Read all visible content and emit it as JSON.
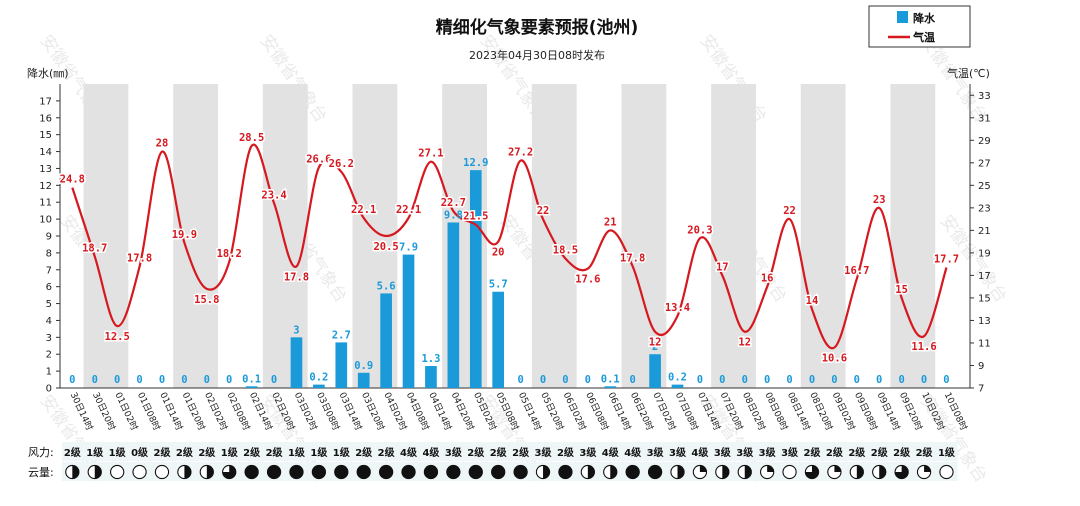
{
  "title": "精细化气象要素预报(池州)",
  "subtitle": "2023年04月30日08时发布",
  "legend": {
    "rain_label": "降水",
    "temp_label": "气温"
  },
  "colors": {
    "rain": "#1a9ad9",
    "temp": "#d6181f",
    "band": "#e2e2e2"
  },
  "watermark": "安徽省气象台",
  "rows": {
    "wind_label": "风力:",
    "cloud_label": "云量:"
  },
  "chart_data": {
    "type": "bar+line",
    "left_axis": {
      "label": "降水(㎜)",
      "min": 0,
      "max": 18,
      "ticks": [
        0,
        1,
        2,
        3,
        4,
        5,
        6,
        7,
        8,
        9,
        10,
        11,
        12,
        13,
        14,
        15,
        16,
        17
      ]
    },
    "right_axis": {
      "label": "气温(℃)",
      "min": 7,
      "max": 34,
      "ticks": [
        7,
        9,
        11,
        13,
        15,
        17,
        19,
        21,
        23,
        25,
        27,
        29,
        31,
        33
      ]
    },
    "categories": [
      "30日14时",
      "30日20时",
      "01日02时",
      "01日08时",
      "01日14时",
      "01日20时",
      "02日02时",
      "02日08时",
      "02日14时",
      "02日20时",
      "03日02时",
      "03日08时",
      "03日14时",
      "03日20时",
      "04日02时",
      "04日08时",
      "04日14时",
      "04日20时",
      "05日02时",
      "05日08时",
      "05日14时",
      "05日20时",
      "06日02时",
      "06日08时",
      "06日14时",
      "06日20时",
      "07日02时",
      "07日08时",
      "07日14时",
      "07日20时",
      "08日02时",
      "08日08时",
      "08日14时",
      "08日20时",
      "09日02时",
      "09日08时",
      "09日14时",
      "09日20时",
      "10日02时",
      "10日08时"
    ],
    "rain_values": [
      0,
      0,
      0,
      0,
      0,
      0,
      0,
      0,
      0.1,
      0,
      3,
      0.2,
      2.7,
      0.9,
      5.6,
      7.9,
      1.3,
      9.8,
      12.9,
      5.7,
      0,
      0,
      0,
      0,
      0.1,
      0,
      2,
      0.2,
      0,
      0,
      0,
      0,
      0,
      0,
      0,
      0,
      0,
      0,
      0,
      0
    ],
    "rain_labels": [
      "0",
      "0",
      "0",
      "0",
      "0",
      "0",
      "0",
      "0",
      "0.1",
      "0",
      "3",
      "0.2",
      "2.7",
      "0.9",
      "5.6",
      "7.9",
      "1.3",
      "9.8",
      "12.9",
      "5.7",
      "0",
      "0",
      "0",
      "0",
      "0.1",
      "0",
      "2",
      "0.2",
      "0",
      "0",
      "0",
      "0",
      "0",
      "0",
      "0",
      "0",
      "0",
      "0",
      "0",
      "0"
    ],
    "temp_values": [
      24.8,
      18.7,
      12.5,
      17.8,
      28,
      19.9,
      15.8,
      18.2,
      28.5,
      23.4,
      17.8,
      26.6,
      26.2,
      22.1,
      20.5,
      22.1,
      27.1,
      22.7,
      21.5,
      20,
      27.2,
      22,
      18.5,
      17.6,
      21,
      17.8,
      12,
      13.4,
      20.3,
      17,
      12,
      16,
      22,
      14,
      10.6,
      16.7,
      23,
      15,
      11.6,
      17.7
    ],
    "temp_labels": [
      "24.8",
      "18.7",
      "12.5",
      "17.8",
      "28",
      "19.9",
      "15.8",
      "18.2",
      "28.5",
      "23.4",
      "17.8",
      "26.6",
      "26.2",
      "22.1",
      "20.5",
      "22.1",
      "27.1",
      "22.7",
      "21.5",
      "20",
      "27.2",
      "22",
      "18.5",
      "17.6",
      "21",
      "17.8",
      "12",
      "13.4",
      "20.3",
      "17",
      "12",
      "16",
      "22",
      "14",
      "10.6",
      "16.7",
      "23",
      "15",
      "11.6",
      "17.7"
    ],
    "wind": [
      "2级",
      "1级",
      "1级",
      "0级",
      "2级",
      "2级",
      "2级",
      "1级",
      "2级",
      "2级",
      "1级",
      "1级",
      "1级",
      "2级",
      "2级",
      "4级",
      "4级",
      "3级",
      "2级",
      "2级",
      "2级",
      "3级",
      "2级",
      "3级",
      "4级",
      "4级",
      "3级",
      "3级",
      "4级",
      "3级",
      "3级",
      "3级",
      "3级",
      "2级",
      "2级",
      "2级",
      "2级",
      "2级",
      "2级",
      "1级"
    ],
    "cloud": [
      0.5,
      0.5,
      0,
      0,
      0,
      0.5,
      0.5,
      0.75,
      1,
      1,
      1,
      1,
      1,
      1,
      1,
      1,
      1,
      1,
      1,
      1,
      1,
      0.5,
      1,
      0.5,
      0.5,
      1,
      1,
      0.5,
      0.25,
      0.5,
      0.5,
      0.25,
      0,
      0.75,
      0.25,
      0.5,
      0.5,
      0.75,
      0.25,
      0
    ]
  }
}
